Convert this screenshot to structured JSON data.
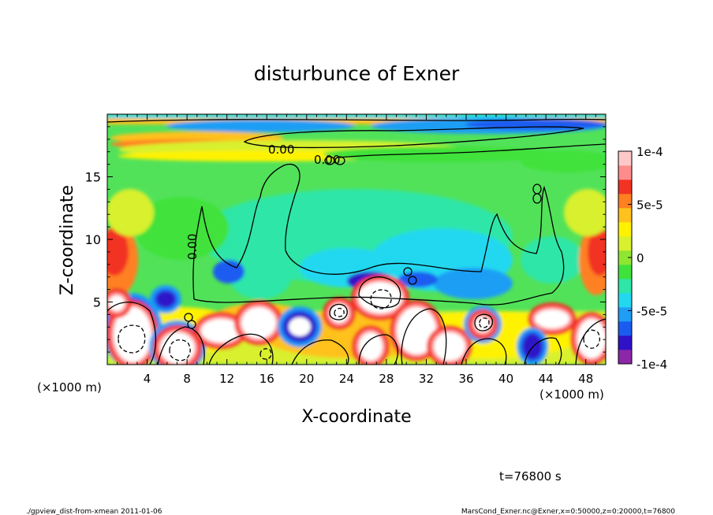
{
  "chart_data": {
    "type": "heatmap",
    "title": "disturbunce of Exner",
    "xlabel": "X-coordinate",
    "ylabel": "Z-coordinate",
    "x_unit_left": "(×1000 m)",
    "x_unit_right": "(×1000 m)",
    "xlim": [
      0,
      50
    ],
    "ylim": [
      0,
      20
    ],
    "x_ticks": [
      4,
      8,
      12,
      16,
      20,
      24,
      28,
      32,
      36,
      40,
      44,
      48
    ],
    "y_ticks": [
      5,
      10,
      15
    ],
    "colorbar": {
      "min": -0.0001,
      "max": 0.0001,
      "tick_labels": [
        "1e-4",
        "5e-5",
        "0",
        "-5e-5",
        "-1e-4"
      ],
      "tick_values": [
        0.0001,
        5e-05,
        0,
        -5e-05,
        -0.0001
      ]
    },
    "contour_labels": [
      "0.00",
      "0.00",
      "0.00"
    ],
    "time_label": "t=76800 s",
    "footer_left": "./gpview_dist-from-xmean  2011-01-06",
    "footer_right": "MarsCond_Exner.nc@Exner,x=0:50000,z=0:20000,t=76800"
  },
  "colors": {
    "scale": [
      "#8b27a8",
      "#2f12c8",
      "#1a5cf0",
      "#1f9ef5",
      "#22d8f0",
      "#2ee6a8",
      "#3fe23b",
      "#8fe630",
      "#d8f02e",
      "#fff200",
      "#ffc11c",
      "#ff8020",
      "#f23223",
      "#ff8c8c",
      "#ffc8c8"
    ],
    "background_field": "#52e25a",
    "saturated_positive": "#ffffff"
  }
}
